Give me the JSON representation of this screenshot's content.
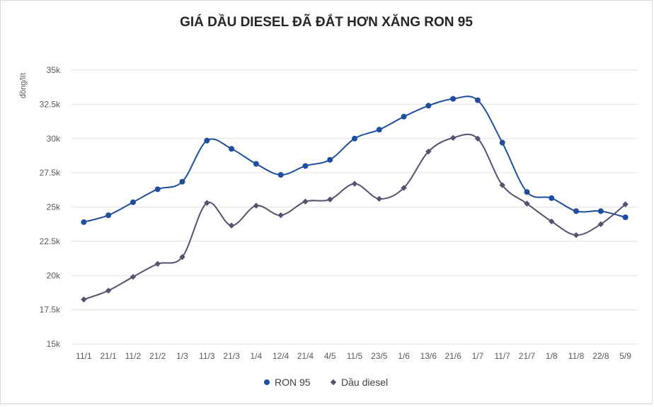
{
  "chart_data": {
    "type": "line",
    "title": "GIÁ DẦU DIESEL ĐÃ ĐẮT HƠN XĂNG RON 95",
    "xlabel": "",
    "ylabel": "đồng/lít",
    "ylim": [
      15000,
      35000
    ],
    "yticks": [
      15000,
      17500,
      20000,
      22500,
      25000,
      27500,
      30000,
      32500,
      35000
    ],
    "ytick_labels": [
      "15k",
      "17.5k",
      "20k",
      "22.5k",
      "25k",
      "27.5k",
      "30k",
      "32.5k",
      "35k"
    ],
    "categories": [
      "11/1",
      "21/1",
      "11/2",
      "21/2",
      "1/3",
      "11/3",
      "21/3",
      "1/4",
      "12/4",
      "21/4",
      "4/5",
      "11/5",
      "23/5",
      "1/6",
      "13/6",
      "21/6",
      "1/7",
      "11/7",
      "21/7",
      "1/8",
      "11/8",
      "22/8",
      "5/9"
    ],
    "grid": true,
    "legend_position": "bottom",
    "series": [
      {
        "name": "RON 95",
        "color": "#1f4e9e",
        "marker": "circle",
        "values": [
          23900,
          24400,
          25350,
          26300,
          26850,
          29850,
          29250,
          28150,
          27350,
          28000,
          28450,
          30000,
          30650,
          31600,
          32400,
          32900,
          32800,
          29700,
          26100,
          25650,
          24700,
          24700,
          24250
        ]
      },
      {
        "name": "Dầu diesel",
        "color": "#5a4f6e",
        "marker": "diamond",
        "values": [
          18250,
          18900,
          19900,
          20850,
          21350,
          25300,
          23650,
          25100,
          24400,
          25400,
          25550,
          26700,
          25600,
          26400,
          29050,
          30050,
          30000,
          26600,
          25250,
          23950,
          22950,
          23750,
          25200
        ]
      }
    ]
  }
}
